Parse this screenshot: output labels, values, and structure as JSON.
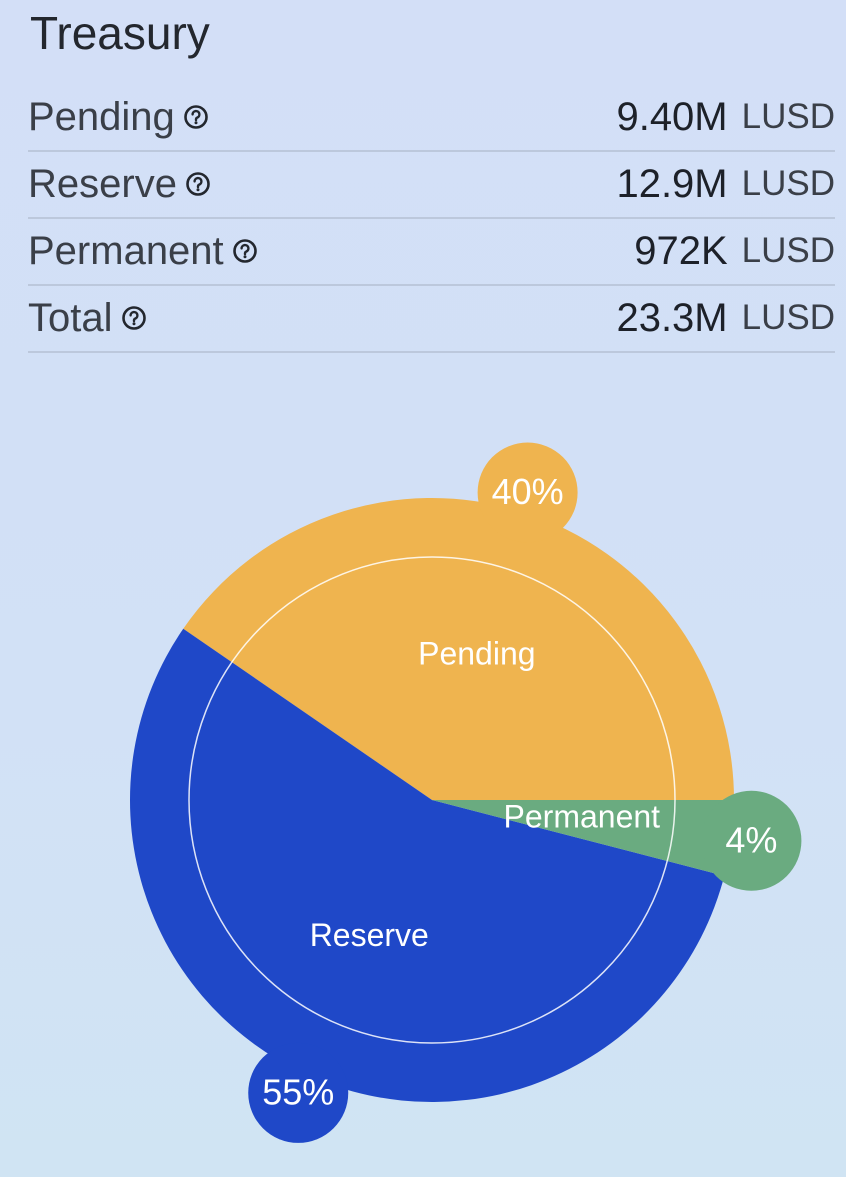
{
  "header": {
    "title": "Treasury"
  },
  "table": {
    "rows": [
      {
        "label": "Pending",
        "value": "9.40M",
        "unit": "LUSD"
      },
      {
        "label": "Reserve",
        "value": "12.9M",
        "unit": "LUSD"
      },
      {
        "label": "Permanent",
        "value": "972K",
        "unit": "LUSD"
      },
      {
        "label": "Total",
        "value": "23.3M",
        "unit": "LUSD"
      }
    ]
  },
  "chart_data": {
    "type": "pie",
    "categories": [
      "Pending",
      "Reserve",
      "Permanent"
    ],
    "values": [
      40,
      55,
      4
    ],
    "value_labels": [
      "40%",
      "55%",
      "4%"
    ],
    "colors": [
      "#efb44f",
      "#1f48c8",
      "#6aab80"
    ]
  }
}
